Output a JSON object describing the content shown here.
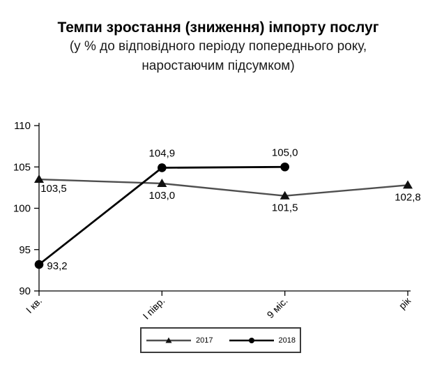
{
  "chart_data": {
    "type": "line",
    "title": "Темпи зростання (зниження) імпорту послуг",
    "subtitle": "(у % до відповідного періоду попереднього року, наростаючим підсумком)",
    "subtitle_lines": [
      "(у % до відповідного періоду попереднього року,",
      "наростаючим підсумком)"
    ],
    "categories": [
      "І кв.",
      "І півр.",
      "9 міс.",
      "рік"
    ],
    "series": [
      {
        "name": "2017",
        "marker": "triangle",
        "color": "#4f4f4f",
        "marker_color": "#111111",
        "values": [
          103.5,
          103.0,
          101.5,
          102.8
        ],
        "labels": [
          "103,5",
          "103,0",
          "101,5",
          "102,8"
        ],
        "label_positions": [
          "below-right",
          "below",
          "below",
          "below"
        ]
      },
      {
        "name": "2018",
        "marker": "circle",
        "color": "#000000",
        "marker_color": "#000000",
        "values": [
          93.2,
          104.9,
          105.0,
          null
        ],
        "labels": [
          "93,2",
          "104,9",
          "105,0",
          null
        ],
        "label_positions": [
          "right",
          "above",
          "above",
          null
        ]
      }
    ],
    "xlabel": "",
    "ylabel": "",
    "ylim": [
      90,
      110
    ],
    "yticks": [
      90,
      95,
      100,
      105,
      110
    ],
    "grid": false,
    "legend_position": "bottom",
    "axis_color": "#000000",
    "label_color": "#000000"
  }
}
